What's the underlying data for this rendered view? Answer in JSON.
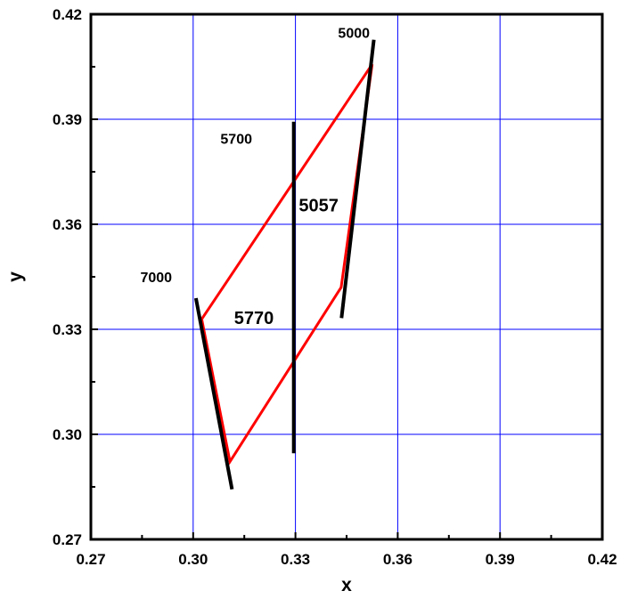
{
  "chart_data": {
    "type": "line",
    "title": "",
    "xlabel": "x",
    "ylabel": "y",
    "xlim": [
      0.27,
      0.42
    ],
    "ylim": [
      0.27,
      0.42
    ],
    "xticks": [
      "0.27",
      "0.30",
      "0.33",
      "0.36",
      "0.39",
      "0.42"
    ],
    "yticks": [
      "0.27",
      "0.30",
      "0.33",
      "0.36",
      "0.39",
      "0.42"
    ],
    "grid": true,
    "grid_color": "#0000ff",
    "series": [
      {
        "color": "#ff0000",
        "points": [
          [
            0.3525,
            0.4057
          ],
          [
            0.3025,
            0.3329
          ],
          [
            0.3108,
            0.2922
          ],
          [
            0.3434,
            0.342
          ],
          [
            0.3525,
            0.4057
          ]
        ]
      },
      {
        "color": "#000000",
        "points": [
          [
            0.353,
            0.4127
          ],
          [
            0.3435,
            0.3332
          ]
        ]
      },
      {
        "color": "#000000",
        "points": [
          [
            0.3295,
            0.3893
          ],
          [
            0.3295,
            0.2946
          ]
        ]
      },
      {
        "color": "#000000",
        "points": [
          [
            0.3008,
            0.3389
          ],
          [
            0.3114,
            0.2843
          ]
        ]
      }
    ],
    "annotations": [
      {
        "text": "5000",
        "x": 0.3425,
        "y": 0.4133,
        "size": 16
      },
      {
        "text": "5700",
        "x": 0.308,
        "y": 0.383,
        "size": 16
      },
      {
        "text": "5057",
        "x": 0.331,
        "y": 0.3637,
        "size": 20
      },
      {
        "text": "7000",
        "x": 0.2845,
        "y": 0.3435,
        "size": 16
      },
      {
        "text": "5770",
        "x": 0.312,
        "y": 0.3315,
        "size": 20
      }
    ]
  }
}
